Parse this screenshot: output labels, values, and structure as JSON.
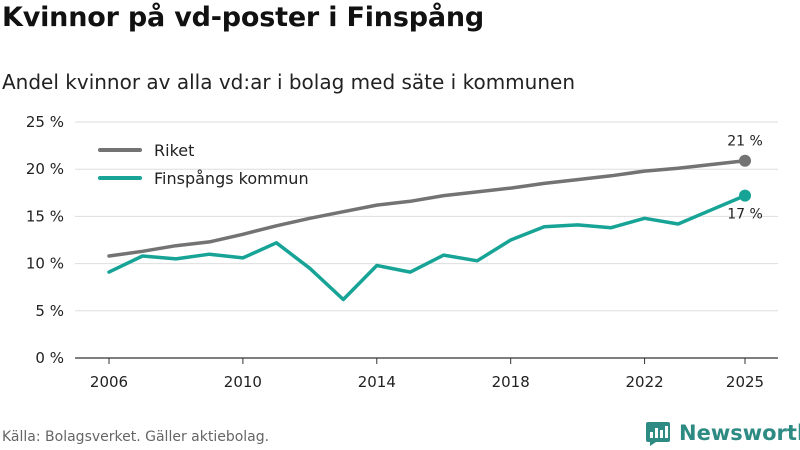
{
  "header": {
    "title": "Kvinnor på vd-poster i Finspång",
    "subtitle": "Andel kvinnor av alla vd:ar i bolag med säte i kommunen"
  },
  "footer": {
    "source": "Källa: Bolagsverket. Gäller aktiebolag.",
    "brand": "Newsworthy"
  },
  "chart_data": {
    "type": "line",
    "title": "Kvinnor på vd-poster i Finspång",
    "subtitle": "Andel kvinnor av alla vd:ar i bolag med säte i kommunen",
    "xlabel": "",
    "ylabel": "",
    "x": [
      2006,
      2007,
      2008,
      2009,
      2010,
      2011,
      2012,
      2013,
      2014,
      2015,
      2016,
      2017,
      2018,
      2019,
      2020,
      2021,
      2022,
      2023,
      2024,
      2025
    ],
    "xlim": [
      2006,
      2025
    ],
    "ylim": [
      0,
      25
    ],
    "x_ticks": [
      2006,
      2010,
      2014,
      2018,
      2022,
      2025
    ],
    "x_tick_labels": [
      "2006",
      "2010",
      "2014",
      "2018",
      "2022",
      "2025"
    ],
    "y_ticks": [
      0,
      5,
      10,
      15,
      20,
      25
    ],
    "y_tick_labels": [
      "0 %",
      "5 %",
      "10 %",
      "15 %",
      "20 %",
      "25 %"
    ],
    "grid": true,
    "legend_position": "top-left",
    "series": [
      {
        "name": "Riket",
        "color": "#737373",
        "values": [
          10.8,
          11.3,
          11.9,
          12.3,
          13.1,
          14.0,
          14.8,
          15.5,
          16.2,
          16.6,
          17.2,
          17.6,
          18.0,
          18.5,
          18.9,
          19.3,
          19.8,
          20.1,
          20.5,
          20.9
        ],
        "end_label": "21 %"
      },
      {
        "name": "Finspångs kommun",
        "color": "#17a496",
        "values": [
          9.1,
          10.8,
          10.5,
          11.0,
          10.6,
          12.2,
          9.5,
          6.2,
          9.8,
          9.1,
          10.9,
          10.3,
          12.5,
          13.9,
          14.1,
          13.8,
          14.8,
          14.2,
          15.7,
          17.2
        ],
        "end_label": "17 %"
      }
    ]
  }
}
